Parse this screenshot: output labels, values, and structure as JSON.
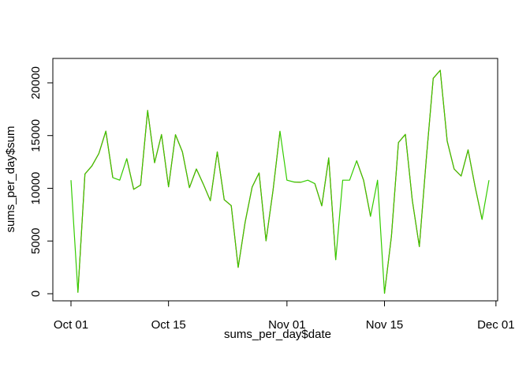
{
  "chart_data": {
    "type": "line",
    "title": "",
    "xlabel": "sums_per_day$date",
    "ylabel": "sums_per_day$sum",
    "xlim": [
      "2012-10-01",
      "2012-11-30"
    ],
    "ylim": [
      0,
      21194
    ],
    "x_ticks": [
      {
        "date": "2012-10-01",
        "label": "Oct 01"
      },
      {
        "date": "2012-10-15",
        "label": "Oct 15"
      },
      {
        "date": "2012-11-01",
        "label": "Nov 01"
      },
      {
        "date": "2012-11-15",
        "label": "Nov 15"
      },
      {
        "date": "2012-12-01",
        "label": "Dec 01"
      }
    ],
    "y_ticks": [
      0,
      5000,
      10000,
      15000,
      20000
    ],
    "y_tick_labels": [
      "0",
      "5000",
      "10000",
      "15000",
      "20000"
    ],
    "grid": false,
    "dates": [
      "2012-10-01",
      "2012-10-02",
      "2012-10-03",
      "2012-10-04",
      "2012-10-05",
      "2012-10-06",
      "2012-10-07",
      "2012-10-08",
      "2012-10-09",
      "2012-10-10",
      "2012-10-11",
      "2012-10-12",
      "2012-10-13",
      "2012-10-14",
      "2012-10-15",
      "2012-10-16",
      "2012-10-17",
      "2012-10-18",
      "2012-10-19",
      "2012-10-20",
      "2012-10-21",
      "2012-10-22",
      "2012-10-23",
      "2012-10-24",
      "2012-10-25",
      "2012-10-26",
      "2012-10-27",
      "2012-10-28",
      "2012-10-29",
      "2012-10-30",
      "2012-10-31",
      "2012-11-01",
      "2012-11-02",
      "2012-11-03",
      "2012-11-04",
      "2012-11-05",
      "2012-11-06",
      "2012-11-07",
      "2012-11-08",
      "2012-11-09",
      "2012-11-10",
      "2012-11-11",
      "2012-11-12",
      "2012-11-13",
      "2012-11-14",
      "2012-11-15",
      "2012-11-16",
      "2012-11-17",
      "2012-11-18",
      "2012-11-19",
      "2012-11-20",
      "2012-11-21",
      "2012-11-22",
      "2012-11-23",
      "2012-11-24",
      "2012-11-25",
      "2012-11-26",
      "2012-11-27",
      "2012-11-28",
      "2012-11-29",
      "2012-11-30"
    ],
    "series": [
      {
        "color": "#ff0000",
        "values": [
          null,
          126,
          11352,
          12116,
          13294,
          15420,
          11015,
          null,
          12811,
          9900,
          10304,
          17382,
          12426,
          15098,
          10139,
          15084,
          13452,
          10056,
          11829,
          10395,
          8821,
          13460,
          8918,
          8355,
          2492,
          6778,
          10119,
          11458,
          5018,
          9819,
          15414,
          null,
          10600,
          10571,
          null,
          10439,
          8334,
          12883,
          3219,
          null,
          null,
          12608,
          10765,
          7336,
          null,
          41,
          5441,
          14339,
          15110,
          8841,
          4472,
          12787,
          20427,
          21194,
          14478,
          11834,
          11162,
          13646,
          10183,
          7047,
          null
        ]
      },
      {
        "color": "#33cc00",
        "values": [
          10766,
          126,
          11352,
          12116,
          13294,
          15420,
          11015,
          10766,
          12811,
          9900,
          10304,
          17382,
          12426,
          15098,
          10139,
          15084,
          13452,
          10056,
          11829,
          10395,
          8821,
          13460,
          8918,
          8355,
          2492,
          6778,
          10119,
          11458,
          5018,
          9819,
          15414,
          10766,
          10600,
          10571,
          10766,
          10439,
          8334,
          12883,
          3219,
          10766,
          10766,
          12608,
          10765,
          7336,
          10766,
          41,
          5441,
          14339,
          15110,
          8841,
          4472,
          12787,
          20427,
          21194,
          14478,
          11834,
          11162,
          13646,
          10183,
          7047,
          10766
        ]
      }
    ]
  }
}
